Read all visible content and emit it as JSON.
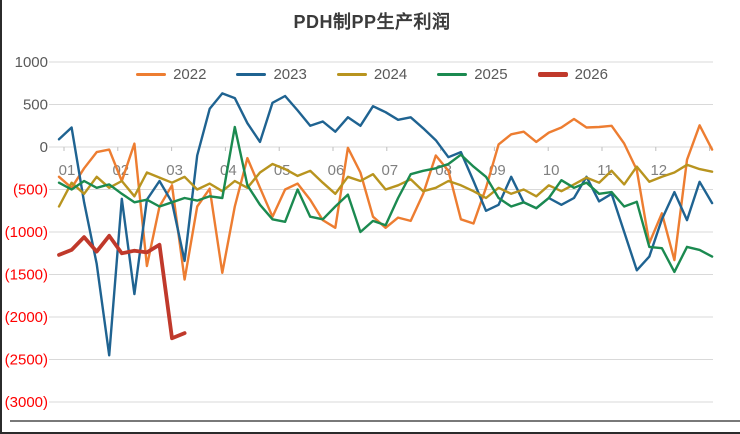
{
  "chart_data": {
    "type": "line",
    "title": "PDH制PP生产利润",
    "xlabel": "",
    "ylabel": "",
    "x_unit": "week-of-year (months 01-12)",
    "ylim": [
      -3000,
      1000
    ],
    "ytick_step": 500,
    "y_ticks": [
      1000,
      500,
      0,
      -500,
      -1000,
      -1500,
      -2000,
      -2500,
      -3000
    ],
    "x_ticks": [
      "01",
      "02",
      "03",
      "04",
      "05",
      "06",
      "07",
      "08",
      "09",
      "10",
      "11",
      "12"
    ],
    "grid": "horizontal-only",
    "legend_position": "top-center",
    "negative_label_style": "parentheses-red",
    "colors": {
      "gridline": "#d9d9d9",
      "axis_line": "#4d4d4d",
      "tick_mark": "#bfbfbf",
      "title_text": "#3b3b3b",
      "legend_text": "#595959",
      "y_label_positive": "#595959",
      "y_label_negative": "#ff0000",
      "x_label": "#808080"
    },
    "series": [
      {
        "name": "2022",
        "color": "#ED7D31",
        "stroke_width": 2.4,
        "values": [
          -350,
          -480,
          -250,
          -60,
          -30,
          -400,
          40,
          -1400,
          -700,
          -450,
          -1560,
          -700,
          -490,
          -1480,
          -700,
          -130,
          -480,
          -820,
          -500,
          -430,
          -620,
          -860,
          -950,
          -10,
          -300,
          -820,
          -950,
          -830,
          -870,
          -550,
          -100,
          -280,
          -850,
          -900,
          -480,
          30,
          150,
          180,
          60,
          170,
          230,
          330,
          230,
          235,
          250,
          40,
          -270,
          -1130,
          -780,
          -1330,
          -150,
          255,
          -30
        ]
      },
      {
        "name": "2023",
        "color": "#1F6391",
        "stroke_width": 2.4,
        "values": [
          90,
          230,
          -650,
          -1375,
          -2450,
          -610,
          -1730,
          -620,
          -400,
          -650,
          -1340,
          -100,
          450,
          630,
          575,
          280,
          60,
          520,
          600,
          430,
          250,
          300,
          180,
          350,
          250,
          480,
          410,
          320,
          350,
          220,
          80,
          -120,
          -60,
          -400,
          -750,
          -680,
          -350,
          -650,
          -720,
          -600,
          -680,
          -600,
          -350,
          -640,
          -550,
          -1000,
          -1450,
          -1290,
          -850,
          -530,
          -860,
          -410,
          -660
        ]
      },
      {
        "name": "2024",
        "color": "#B8941F",
        "stroke_width": 2.4,
        "values": [
          -700,
          -420,
          -550,
          -350,
          -480,
          -400,
          -580,
          -300,
          -360,
          -420,
          -350,
          -500,
          -430,
          -520,
          -400,
          -480,
          -300,
          -200,
          -260,
          -340,
          -280,
          -420,
          -550,
          -350,
          -400,
          -320,
          -500,
          -450,
          -380,
          -520,
          -480,
          -400,
          -450,
          -520,
          -600,
          -480,
          -550,
          -500,
          -580,
          -450,
          -520,
          -440,
          -360,
          -420,
          -280,
          -440,
          -230,
          -410,
          -350,
          -300,
          -210,
          -260,
          -290
        ]
      },
      {
        "name": "2025",
        "color": "#1B8A50",
        "stroke_width": 2.4,
        "values": [
          -420,
          -500,
          -400,
          -480,
          -440,
          -550,
          -650,
          -620,
          -700,
          -650,
          -600,
          -630,
          -580,
          -600,
          235,
          -450,
          -680,
          -850,
          -880,
          -500,
          -820,
          -850,
          -700,
          -560,
          -1000,
          -870,
          -920,
          -600,
          -320,
          -280,
          -250,
          -200,
          -90,
          -230,
          -350,
          -600,
          -700,
          -650,
          -720,
          -600,
          -390,
          -480,
          -420,
          -550,
          -530,
          -700,
          -645,
          -1175,
          -1190,
          -1470,
          -1175,
          -1210,
          -1290
        ]
      },
      {
        "name": "2026",
        "color": "#C0392B",
        "stroke_width": 3.8,
        "values": [
          -1270,
          -1210,
          -1060,
          -1230,
          -1045,
          -1250,
          -1220,
          -1240,
          -1150,
          -2250,
          -2190
        ]
      }
    ]
  }
}
